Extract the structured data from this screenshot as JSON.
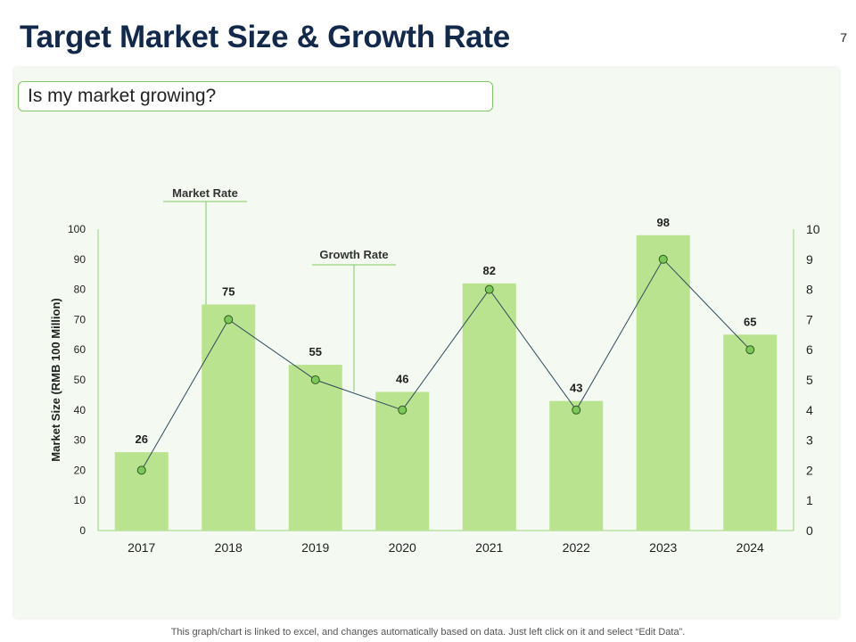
{
  "slide": {
    "title": "Target Market Size & Growth Rate",
    "page_number": "7",
    "question": "Is my market growing?",
    "footer_note": "This graph/chart is linked to excel, and changes automatically based on data. Just left click on it and select “Edit Data”."
  },
  "colors": {
    "bar": "#b9e38e",
    "line": "#2f4a5e",
    "marker_fill": "#7cc75a",
    "marker_stroke": "#2f5a22",
    "axis_line": "#9bd47a",
    "callout_line": "#7ec860"
  },
  "chart_data": {
    "type": "bar",
    "categories": [
      "2017",
      "2018",
      "2019",
      "2020",
      "2021",
      "2022",
      "2023",
      "2024"
    ],
    "series": [
      {
        "name": "Market Rate",
        "type": "bar",
        "axis": "left",
        "values": [
          26,
          75,
          55,
          46,
          82,
          43,
          98,
          65
        ]
      },
      {
        "name": "Growth Rate",
        "type": "line",
        "axis": "right",
        "values": [
          2,
          7,
          5,
          4,
          8,
          4,
          9,
          6
        ]
      }
    ],
    "ylabel": "Market Size (RMB 100 Million)",
    "ylim": [
      0,
      100
    ],
    "yticks": [
      "0",
      "10",
      "20",
      "30",
      "40",
      "50",
      "60",
      "70",
      "80",
      "90",
      "100"
    ],
    "y2lim": [
      0,
      10
    ],
    "y2ticks": [
      "0",
      "1",
      "2",
      "3",
      "4",
      "5",
      "6",
      "7",
      "8",
      "9",
      "10"
    ],
    "data_labels": [
      "26",
      "75",
      "55",
      "46",
      "82",
      "43",
      "98",
      "65"
    ],
    "annotations": [
      {
        "text": "Market Rate",
        "category_index": 1,
        "series": "bar"
      },
      {
        "text": "Growth Rate",
        "category_index": 2,
        "series": "line"
      }
    ]
  }
}
